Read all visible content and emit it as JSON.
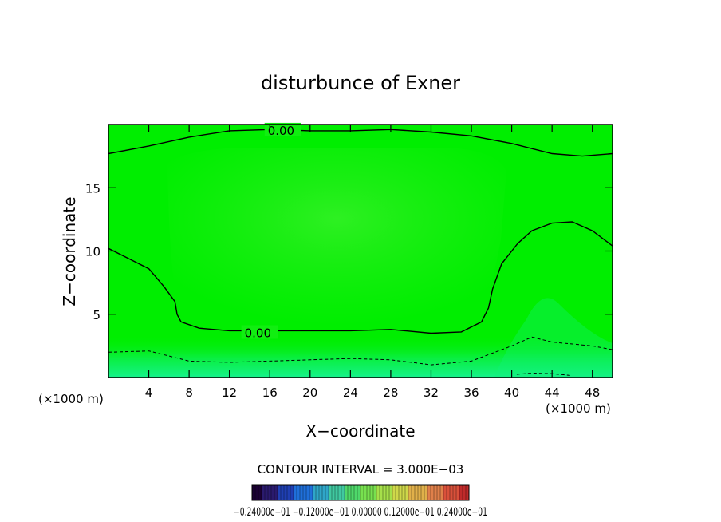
{
  "chart_data": {
    "type": "heatmap",
    "title": "disturbunce of Exner",
    "xlabel": "X−coordinate",
    "ylabel": "Z−coordinate",
    "x_unit_left": "(×1000 m)",
    "x_unit_right": "(×1000 m)",
    "xlim": [
      0,
      50
    ],
    "ylim": [
      0,
      20
    ],
    "x_ticks": [
      4,
      8,
      12,
      16,
      20,
      24,
      28,
      32,
      36,
      40,
      44,
      48
    ],
    "x_tick_labels": [
      "4",
      "8",
      "12",
      "16",
      "20",
      "24",
      "28",
      "32",
      "36",
      "40",
      "44",
      "48"
    ],
    "y_ticks": [
      5,
      10,
      15
    ],
    "y_tick_labels": [
      "5",
      "10",
      "15"
    ],
    "contour_interval_text": "CONTOUR INTERVAL = 3.000E−03",
    "colorbar_labels_text": "−0.24000e−01 −0.12000e−01 0.00000 0.12000e−01 0.24000e−01",
    "contours": [
      {
        "level": 0.0,
        "label": "0.00",
        "style": "solid",
        "label_at": [
          15.8,
          19.5
        ],
        "points": [
          [
            0,
            17.7
          ],
          [
            4,
            18.3
          ],
          [
            8,
            19.0
          ],
          [
            12,
            19.5
          ],
          [
            16,
            19.6
          ],
          [
            20,
            19.5
          ],
          [
            24,
            19.5
          ],
          [
            28,
            19.6
          ],
          [
            32,
            19.4
          ],
          [
            36,
            19.1
          ],
          [
            40,
            18.5
          ],
          [
            44,
            17.7
          ],
          [
            47,
            17.5
          ],
          [
            50,
            17.7
          ]
        ]
      },
      {
        "level": 0.0,
        "label": "0.00",
        "style": "solid",
        "label_at": [
          13.5,
          3.5
        ],
        "points": [
          [
            0,
            10.2
          ],
          [
            2,
            9.4
          ],
          [
            4,
            8.6
          ],
          [
            5.5,
            7.2
          ],
          [
            6.6,
            6.0
          ],
          [
            6.8,
            5.0
          ],
          [
            7.2,
            4.4
          ],
          [
            9,
            3.9
          ],
          [
            12,
            3.7
          ],
          [
            16,
            3.7
          ],
          [
            20,
            3.7
          ],
          [
            24,
            3.7
          ],
          [
            28,
            3.8
          ],
          [
            32,
            3.5
          ],
          [
            35,
            3.6
          ],
          [
            37,
            4.4
          ],
          [
            37.7,
            5.5
          ],
          [
            38.1,
            7.0
          ],
          [
            39,
            9.0
          ],
          [
            40.6,
            10.6
          ],
          [
            42,
            11.6
          ],
          [
            44,
            12.2
          ],
          [
            46,
            12.3
          ],
          [
            48,
            11.6
          ],
          [
            50,
            10.4
          ]
        ]
      },
      {
        "level": -0.003,
        "label": "",
        "style": "dashed",
        "points": [
          [
            0,
            2.0
          ],
          [
            4,
            2.1
          ],
          [
            8,
            1.3
          ],
          [
            12,
            1.2
          ],
          [
            16,
            1.3
          ],
          [
            20,
            1.4
          ],
          [
            24,
            1.5
          ],
          [
            28,
            1.4
          ],
          [
            32,
            1.0
          ],
          [
            36,
            1.3
          ],
          [
            40,
            2.5
          ],
          [
            42,
            3.2
          ],
          [
            44,
            2.8
          ],
          [
            48,
            2.5
          ],
          [
            50,
            2.2
          ]
        ]
      },
      {
        "level": -0.006,
        "label": "",
        "style": "dashed",
        "points": [
          [
            40.5,
            0.25
          ],
          [
            42,
            0.35
          ],
          [
            44,
            0.3
          ],
          [
            46,
            0.15
          ]
        ]
      }
    ],
    "field_regions": [
      {
        "description": "upper interior, slightly positive",
        "color": "#2bf216"
      },
      {
        "description": "background zero band",
        "color": "#0fe611"
      },
      {
        "description": "near-surface negative",
        "color": "#12f07a"
      }
    ]
  },
  "colors": {
    "field_zero": "#00ee00",
    "field_interior": "#22f222",
    "field_bottom": "#14f57c",
    "field_bottom_strong": "#18f39c",
    "contour": "#000000",
    "colorbar": [
      "#1a0033",
      "#2a1a6e",
      "#1f3fb3",
      "#1f6fd9",
      "#2fa6c8",
      "#40c8a0",
      "#4fd86a",
      "#77e04f",
      "#a6e04a",
      "#cfd84a",
      "#e0b04a",
      "#e0804a",
      "#d9503a",
      "#c02a2a"
    ]
  }
}
